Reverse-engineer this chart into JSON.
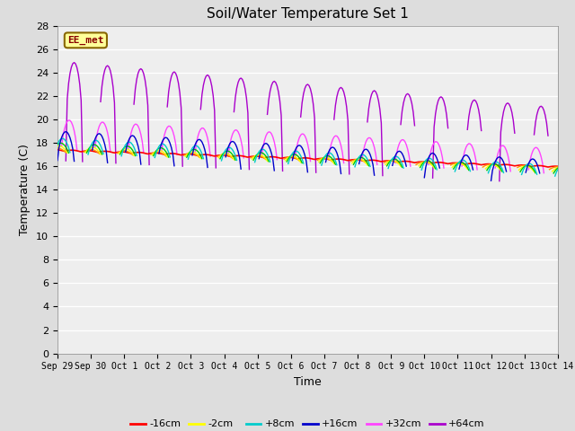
{
  "title": "Soil/Water Temperature Set 1",
  "xlabel": "Time",
  "ylabel": "Temperature (C)",
  "ylim": [
    0,
    28
  ],
  "yticks": [
    0,
    2,
    4,
    6,
    8,
    10,
    12,
    14,
    16,
    18,
    20,
    22,
    24,
    26,
    28
  ],
  "x_labels": [
    "Sep 29",
    "Sep 30",
    "Oct 1",
    "Oct 2",
    "Oct 3",
    "Oct 4",
    "Oct 5",
    "Oct 6",
    "Oct 7",
    "Oct 8",
    "Oct 9",
    "Oct 10",
    "Oct 11",
    "Oct 12",
    "Oct 13",
    "Oct 14"
  ],
  "series_colors": {
    "-16cm": "#ff0000",
    "-8cm": "#ff9900",
    "-2cm": "#ffff00",
    "+2cm": "#00cc00",
    "+8cm": "#00cccc",
    "+16cm": "#0000cc",
    "+32cm": "#ff44ff",
    "+64cm": "#aa00cc"
  },
  "watermark_text": "EE_met",
  "watermark_bg": "#ffff99",
  "watermark_border": "#886600",
  "background_color": "#dddddd",
  "plot_bg_color": "#eeeeee"
}
